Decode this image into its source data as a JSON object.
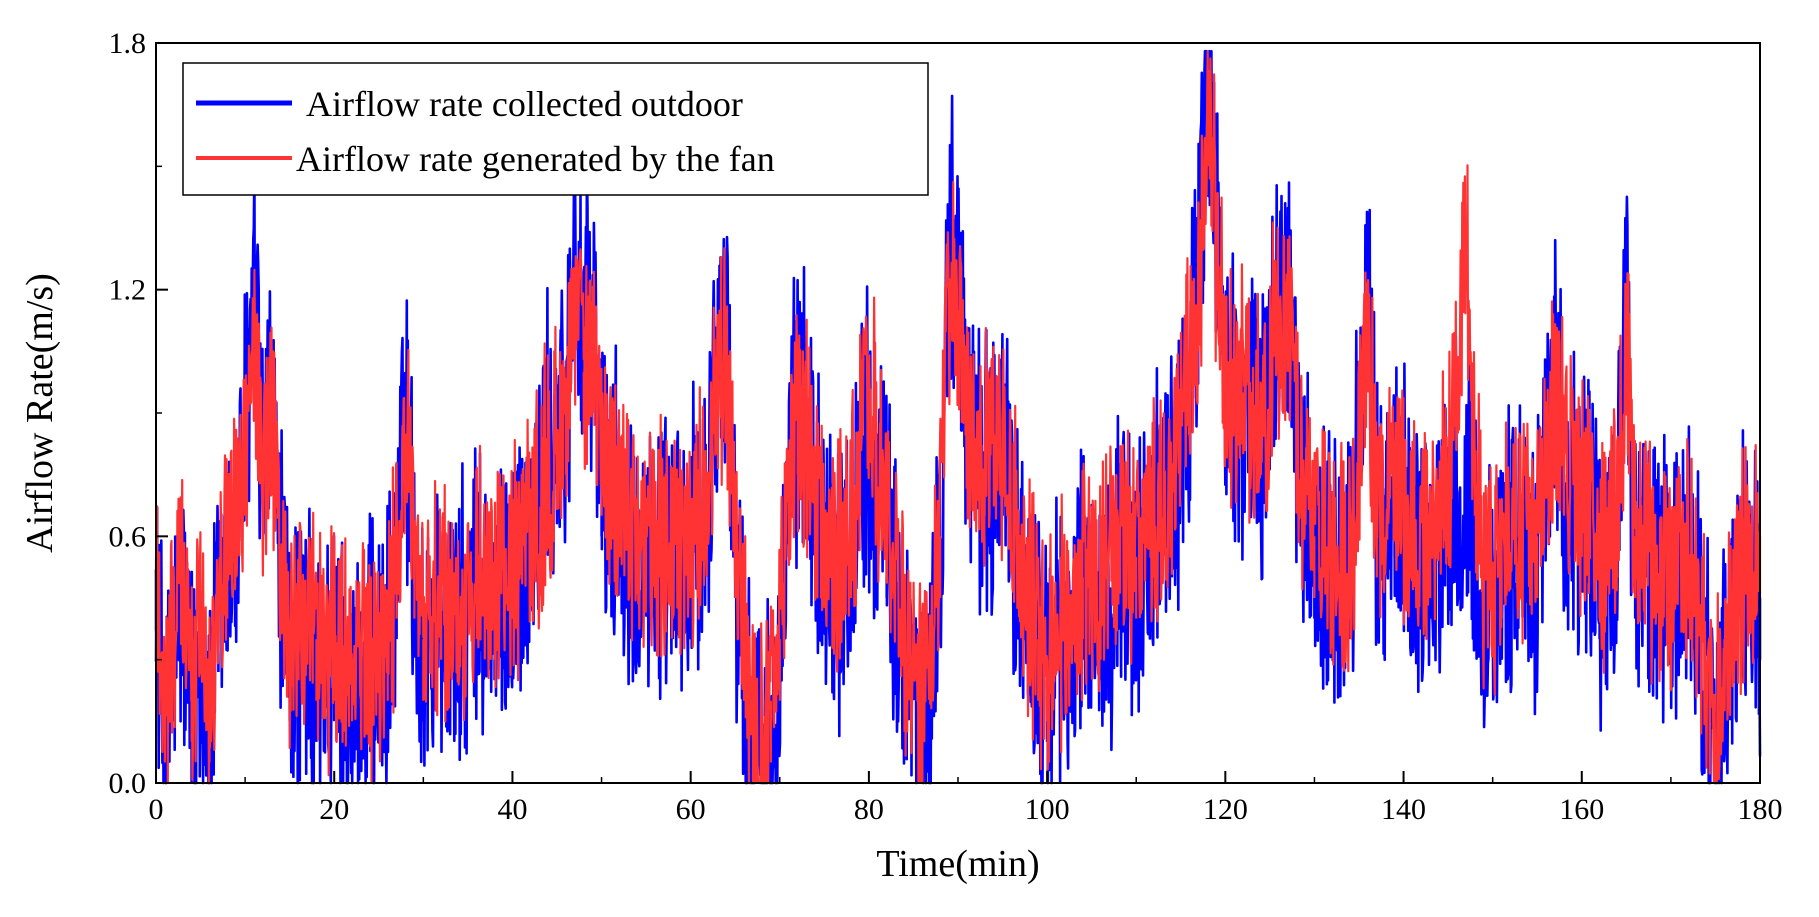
{
  "chart_data": {
    "type": "line",
    "title": "",
    "xlabel": "Time(min)",
    "ylabel": "Airflow Rate(m/s)",
    "xlim": [
      0,
      180
    ],
    "ylim": [
      0.0,
      1.8
    ],
    "x_ticks": [
      0,
      20,
      40,
      60,
      80,
      100,
      120,
      140,
      160,
      180
    ],
    "x_tick_labels": [
      "0",
      "20",
      "40",
      "60",
      "80",
      "100",
      "120",
      "140",
      "160",
      "180"
    ],
    "y_ticks": [
      0.0,
      0.6,
      1.2,
      1.8
    ],
    "y_tick_labels": [
      "0.0",
      "0.6",
      "1.2",
      "1.8"
    ],
    "grid": false,
    "legend_position": "top-left",
    "series": [
      {
        "name": "Airflow rate collected outdoor",
        "color": "#0000ff",
        "anchors": [
          [
            0,
            0.52
          ],
          [
            1,
            0.05
          ],
          [
            2,
            0.3
          ],
          [
            3,
            0.45
          ],
          [
            4,
            0.15
          ],
          [
            5,
            0.35
          ],
          [
            6,
            0.1
          ],
          [
            7,
            0.42
          ],
          [
            8,
            0.5
          ],
          [
            9,
            0.6
          ],
          [
            10,
            0.85
          ],
          [
            11,
            1.2
          ],
          [
            12,
            0.75
          ],
          [
            13,
            0.92
          ],
          [
            14,
            0.5
          ],
          [
            15,
            0.3
          ],
          [
            16,
            0.35
          ],
          [
            18,
            0.25
          ],
          [
            20,
            0.3
          ],
          [
            22,
            0.2
          ],
          [
            24,
            0.25
          ],
          [
            26,
            0.3
          ],
          [
            27,
            0.5
          ],
          [
            28,
            0.93
          ],
          [
            29,
            0.5
          ],
          [
            30,
            0.3
          ],
          [
            32,
            0.4
          ],
          [
            34,
            0.35
          ],
          [
            36,
            0.45
          ],
          [
            38,
            0.4
          ],
          [
            40,
            0.5
          ],
          [
            42,
            0.6
          ],
          [
            44,
            0.8
          ],
          [
            46,
            0.9
          ],
          [
            47,
            1.35
          ],
          [
            48,
            1.05
          ],
          [
            49,
            1.18
          ],
          [
            50,
            0.75
          ],
          [
            52,
            0.65
          ],
          [
            54,
            0.6
          ],
          [
            56,
            0.55
          ],
          [
            58,
            0.5
          ],
          [
            60,
            0.55
          ],
          [
            62,
            0.75
          ],
          [
            63,
            1.05
          ],
          [
            64,
            1.1
          ],
          [
            65,
            0.6
          ],
          [
            66,
            0.3
          ],
          [
            67,
            0.1
          ],
          [
            68,
            0.05
          ],
          [
            69,
            0.15
          ],
          [
            70,
            0.3
          ],
          [
            71,
            0.75
          ],
          [
            72,
            0.95
          ],
          [
            74,
            0.7
          ],
          [
            76,
            0.5
          ],
          [
            78,
            0.55
          ],
          [
            79,
            0.8
          ],
          [
            80,
            0.85
          ],
          [
            82,
            0.6
          ],
          [
            84,
            0.3
          ],
          [
            86,
            0.1
          ],
          [
            88,
            0.55
          ],
          [
            89,
            1.3
          ],
          [
            90,
            1.25
          ],
          [
            91,
            0.9
          ],
          [
            93,
            0.75
          ],
          [
            95,
            0.8
          ],
          [
            97,
            0.5
          ],
          [
            99,
            0.3
          ],
          [
            100,
            0.25
          ],
          [
            102,
            0.35
          ],
          [
            104,
            0.45
          ],
          [
            106,
            0.4
          ],
          [
            108,
            0.55
          ],
          [
            110,
            0.5
          ],
          [
            112,
            0.6
          ],
          [
            114,
            0.65
          ],
          [
            116,
            1.0
          ],
          [
            117,
            1.25
          ],
          [
            118,
            1.75
          ],
          [
            119,
            1.35
          ],
          [
            120,
            0.95
          ],
          [
            122,
            0.9
          ],
          [
            124,
            0.85
          ],
          [
            126,
            1.15
          ],
          [
            127,
            1.25
          ],
          [
            128,
            0.8
          ],
          [
            130,
            0.55
          ],
          [
            132,
            0.5
          ],
          [
            134,
            0.5
          ],
          [
            136,
            1.2
          ],
          [
            137,
            0.6
          ],
          [
            139,
            0.7
          ],
          [
            141,
            0.6
          ],
          [
            143,
            0.55
          ],
          [
            145,
            0.65
          ],
          [
            147,
            0.7
          ],
          [
            149,
            0.45
          ],
          [
            151,
            0.5
          ],
          [
            153,
            0.6
          ],
          [
            155,
            0.55
          ],
          [
            157,
            1.05
          ],
          [
            158,
            0.75
          ],
          [
            160,
            0.65
          ],
          [
            162,
            0.5
          ],
          [
            164,
            0.6
          ],
          [
            165,
            1.2
          ],
          [
            166,
            0.55
          ],
          [
            168,
            0.5
          ],
          [
            170,
            0.45
          ],
          [
            172,
            0.5
          ],
          [
            174,
            0.25
          ],
          [
            175,
            0.05
          ],
          [
            176,
            0.3
          ],
          [
            178,
            0.5
          ],
          [
            180,
            0.45
          ]
        ]
      },
      {
        "name": "Airflow rate generated by the fan",
        "color": "#ff3333",
        "anchors": [
          [
            0,
            0.55
          ],
          [
            1,
            0.2
          ],
          [
            2,
            0.4
          ],
          [
            3,
            0.5
          ],
          [
            4,
            0.25
          ],
          [
            5,
            0.45
          ],
          [
            6,
            0.2
          ],
          [
            7,
            0.5
          ],
          [
            8,
            0.55
          ],
          [
            9,
            0.65
          ],
          [
            10,
            0.8
          ],
          [
            11,
            1.1
          ],
          [
            12,
            0.75
          ],
          [
            13,
            0.85
          ],
          [
            14,
            0.55
          ],
          [
            15,
            0.35
          ],
          [
            16,
            0.4
          ],
          [
            18,
            0.35
          ],
          [
            20,
            0.35
          ],
          [
            22,
            0.3
          ],
          [
            24,
            0.3
          ],
          [
            26,
            0.35
          ],
          [
            27,
            0.55
          ],
          [
            28,
            0.85
          ],
          [
            29,
            0.55
          ],
          [
            30,
            0.35
          ],
          [
            32,
            0.45
          ],
          [
            34,
            0.4
          ],
          [
            36,
            0.5
          ],
          [
            38,
            0.45
          ],
          [
            40,
            0.55
          ],
          [
            42,
            0.65
          ],
          [
            44,
            0.75
          ],
          [
            46,
            0.9
          ],
          [
            47,
            1.25
          ],
          [
            48,
            1.0
          ],
          [
            49,
            1.05
          ],
          [
            50,
            0.8
          ],
          [
            52,
            0.7
          ],
          [
            54,
            0.65
          ],
          [
            56,
            0.6
          ],
          [
            58,
            0.55
          ],
          [
            60,
            0.6
          ],
          [
            62,
            0.75
          ],
          [
            63,
            0.95
          ],
          [
            64,
            1.0
          ],
          [
            65,
            0.6
          ],
          [
            66,
            0.35
          ],
          [
            67,
            0.15
          ],
          [
            68,
            0.1
          ],
          [
            69,
            0.2
          ],
          [
            70,
            0.35
          ],
          [
            71,
            0.7
          ],
          [
            72,
            0.9
          ],
          [
            74,
            0.7
          ],
          [
            76,
            0.55
          ],
          [
            78,
            0.6
          ],
          [
            79,
            0.8
          ],
          [
            80,
            0.95
          ],
          [
            82,
            0.65
          ],
          [
            84,
            0.35
          ],
          [
            86,
            0.15
          ],
          [
            88,
            0.6
          ],
          [
            89,
            1.2
          ],
          [
            90,
            1.15
          ],
          [
            91,
            0.9
          ],
          [
            93,
            0.8
          ],
          [
            95,
            0.85
          ],
          [
            97,
            0.55
          ],
          [
            99,
            0.35
          ],
          [
            100,
            0.3
          ],
          [
            102,
            0.4
          ],
          [
            104,
            0.5
          ],
          [
            106,
            0.45
          ],
          [
            108,
            0.6
          ],
          [
            110,
            0.55
          ],
          [
            112,
            0.65
          ],
          [
            114,
            0.7
          ],
          [
            116,
            1.05
          ],
          [
            117,
            1.2
          ],
          [
            118,
            1.65
          ],
          [
            119,
            1.3
          ],
          [
            120,
            1.0
          ],
          [
            122,
            0.95
          ],
          [
            124,
            0.9
          ],
          [
            126,
            1.1
          ],
          [
            127,
            1.15
          ],
          [
            128,
            0.85
          ],
          [
            130,
            0.6
          ],
          [
            132,
            0.55
          ],
          [
            134,
            0.55
          ],
          [
            136,
            1.1
          ],
          [
            137,
            0.65
          ],
          [
            139,
            0.75
          ],
          [
            141,
            0.65
          ],
          [
            143,
            0.6
          ],
          [
            145,
            0.7
          ],
          [
            147,
            1.35
          ],
          [
            148,
            0.8
          ],
          [
            149,
            0.5
          ],
          [
            151,
            0.55
          ],
          [
            153,
            0.65
          ],
          [
            155,
            0.6
          ],
          [
            157,
            0.95
          ],
          [
            158,
            0.8
          ],
          [
            160,
            0.7
          ],
          [
            162,
            0.55
          ],
          [
            164,
            0.65
          ],
          [
            165,
            1.1
          ],
          [
            166,
            0.6
          ],
          [
            168,
            0.55
          ],
          [
            170,
            0.5
          ],
          [
            172,
            0.55
          ],
          [
            174,
            0.3
          ],
          [
            175,
            0.1
          ],
          [
            176,
            0.35
          ],
          [
            178,
            0.55
          ],
          [
            180,
            0.6
          ]
        ]
      }
    ]
  }
}
